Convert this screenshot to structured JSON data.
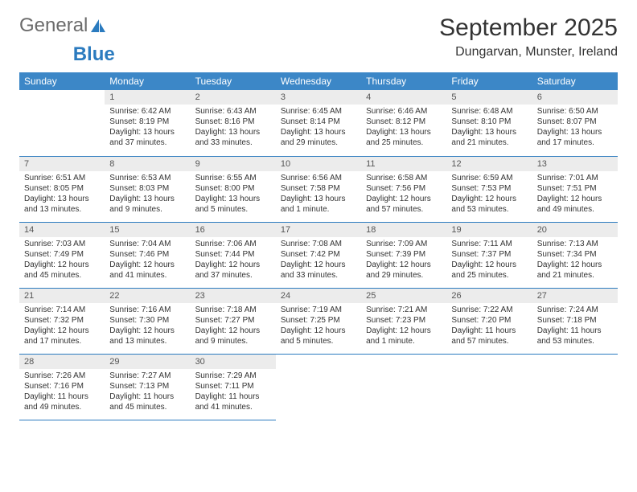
{
  "brand": {
    "general": "General",
    "blue": "Blue"
  },
  "title": "September 2025",
  "location": "Dungarvan, Munster, Ireland",
  "colors": {
    "header_bg": "#3c87c7",
    "header_text": "#ffffff",
    "daynum_bg": "#ececec",
    "border": "#2b7bbf",
    "body_text": "#333333",
    "logo_gray": "#6b6b6b",
    "logo_blue": "#2b7bbf",
    "background": "#ffffff"
  },
  "typography": {
    "title_fontsize": 30,
    "location_fontsize": 16,
    "weekday_fontsize": 12,
    "daynum_fontsize": 11,
    "cell_fontsize": 10
  },
  "weekdays": [
    "Sunday",
    "Monday",
    "Tuesday",
    "Wednesday",
    "Thursday",
    "Friday",
    "Saturday"
  ],
  "weeks": [
    [
      null,
      {
        "n": "1",
        "sr": "Sunrise: 6:42 AM",
        "ss": "Sunset: 8:19 PM",
        "dl": "Daylight: 13 hours and 37 minutes."
      },
      {
        "n": "2",
        "sr": "Sunrise: 6:43 AM",
        "ss": "Sunset: 8:16 PM",
        "dl": "Daylight: 13 hours and 33 minutes."
      },
      {
        "n": "3",
        "sr": "Sunrise: 6:45 AM",
        "ss": "Sunset: 8:14 PM",
        "dl": "Daylight: 13 hours and 29 minutes."
      },
      {
        "n": "4",
        "sr": "Sunrise: 6:46 AM",
        "ss": "Sunset: 8:12 PM",
        "dl": "Daylight: 13 hours and 25 minutes."
      },
      {
        "n": "5",
        "sr": "Sunrise: 6:48 AM",
        "ss": "Sunset: 8:10 PM",
        "dl": "Daylight: 13 hours and 21 minutes."
      },
      {
        "n": "6",
        "sr": "Sunrise: 6:50 AM",
        "ss": "Sunset: 8:07 PM",
        "dl": "Daylight: 13 hours and 17 minutes."
      }
    ],
    [
      {
        "n": "7",
        "sr": "Sunrise: 6:51 AM",
        "ss": "Sunset: 8:05 PM",
        "dl": "Daylight: 13 hours and 13 minutes."
      },
      {
        "n": "8",
        "sr": "Sunrise: 6:53 AM",
        "ss": "Sunset: 8:03 PM",
        "dl": "Daylight: 13 hours and 9 minutes."
      },
      {
        "n": "9",
        "sr": "Sunrise: 6:55 AM",
        "ss": "Sunset: 8:00 PM",
        "dl": "Daylight: 13 hours and 5 minutes."
      },
      {
        "n": "10",
        "sr": "Sunrise: 6:56 AM",
        "ss": "Sunset: 7:58 PM",
        "dl": "Daylight: 13 hours and 1 minute."
      },
      {
        "n": "11",
        "sr": "Sunrise: 6:58 AM",
        "ss": "Sunset: 7:56 PM",
        "dl": "Daylight: 12 hours and 57 minutes."
      },
      {
        "n": "12",
        "sr": "Sunrise: 6:59 AM",
        "ss": "Sunset: 7:53 PM",
        "dl": "Daylight: 12 hours and 53 minutes."
      },
      {
        "n": "13",
        "sr": "Sunrise: 7:01 AM",
        "ss": "Sunset: 7:51 PM",
        "dl": "Daylight: 12 hours and 49 minutes."
      }
    ],
    [
      {
        "n": "14",
        "sr": "Sunrise: 7:03 AM",
        "ss": "Sunset: 7:49 PM",
        "dl": "Daylight: 12 hours and 45 minutes."
      },
      {
        "n": "15",
        "sr": "Sunrise: 7:04 AM",
        "ss": "Sunset: 7:46 PM",
        "dl": "Daylight: 12 hours and 41 minutes."
      },
      {
        "n": "16",
        "sr": "Sunrise: 7:06 AM",
        "ss": "Sunset: 7:44 PM",
        "dl": "Daylight: 12 hours and 37 minutes."
      },
      {
        "n": "17",
        "sr": "Sunrise: 7:08 AM",
        "ss": "Sunset: 7:42 PM",
        "dl": "Daylight: 12 hours and 33 minutes."
      },
      {
        "n": "18",
        "sr": "Sunrise: 7:09 AM",
        "ss": "Sunset: 7:39 PM",
        "dl": "Daylight: 12 hours and 29 minutes."
      },
      {
        "n": "19",
        "sr": "Sunrise: 7:11 AM",
        "ss": "Sunset: 7:37 PM",
        "dl": "Daylight: 12 hours and 25 minutes."
      },
      {
        "n": "20",
        "sr": "Sunrise: 7:13 AM",
        "ss": "Sunset: 7:34 PM",
        "dl": "Daylight: 12 hours and 21 minutes."
      }
    ],
    [
      {
        "n": "21",
        "sr": "Sunrise: 7:14 AM",
        "ss": "Sunset: 7:32 PM",
        "dl": "Daylight: 12 hours and 17 minutes."
      },
      {
        "n": "22",
        "sr": "Sunrise: 7:16 AM",
        "ss": "Sunset: 7:30 PM",
        "dl": "Daylight: 12 hours and 13 minutes."
      },
      {
        "n": "23",
        "sr": "Sunrise: 7:18 AM",
        "ss": "Sunset: 7:27 PM",
        "dl": "Daylight: 12 hours and 9 minutes."
      },
      {
        "n": "24",
        "sr": "Sunrise: 7:19 AM",
        "ss": "Sunset: 7:25 PM",
        "dl": "Daylight: 12 hours and 5 minutes."
      },
      {
        "n": "25",
        "sr": "Sunrise: 7:21 AM",
        "ss": "Sunset: 7:23 PM",
        "dl": "Daylight: 12 hours and 1 minute."
      },
      {
        "n": "26",
        "sr": "Sunrise: 7:22 AM",
        "ss": "Sunset: 7:20 PM",
        "dl": "Daylight: 11 hours and 57 minutes."
      },
      {
        "n": "27",
        "sr": "Sunrise: 7:24 AM",
        "ss": "Sunset: 7:18 PM",
        "dl": "Daylight: 11 hours and 53 minutes."
      }
    ],
    [
      {
        "n": "28",
        "sr": "Sunrise: 7:26 AM",
        "ss": "Sunset: 7:16 PM",
        "dl": "Daylight: 11 hours and 49 minutes."
      },
      {
        "n": "29",
        "sr": "Sunrise: 7:27 AM",
        "ss": "Sunset: 7:13 PM",
        "dl": "Daylight: 11 hours and 45 minutes."
      },
      {
        "n": "30",
        "sr": "Sunrise: 7:29 AM",
        "ss": "Sunset: 7:11 PM",
        "dl": "Daylight: 11 hours and 41 minutes."
      },
      null,
      null,
      null,
      null
    ]
  ]
}
